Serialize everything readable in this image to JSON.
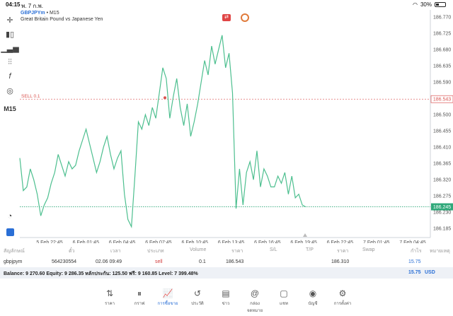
{
  "status_bar": {
    "time": "04:15",
    "date": "พ. 7 ก.พ.",
    "battery": "30%",
    "battery_level": 0.3
  },
  "toolbar": {
    "timeframe": "M15"
  },
  "symbol": {
    "title": "GBPJPYm",
    "separator": " • ",
    "timeframe": "M15",
    "description": "Great Britain Pound vs Japanese Yen"
  },
  "sell_line": {
    "label": "SELL 0.1",
    "price": "186.543"
  },
  "current_price": "186.245",
  "chart_data": {
    "type": "line",
    "x_labels": [
      "5 Feb 22:45",
      "6 Feb 01:45",
      "6 Feb 04:45",
      "6 Feb 07:45",
      "6 Feb 10:45",
      "6 Feb 13:45",
      "6 Feb 16:45",
      "6 Feb 19:45",
      "6 Feb 22:45",
      "7 Feb 01:45",
      "7 Feb 04:45"
    ],
    "y_ticks": [
      "186.770",
      "186.725",
      "186.680",
      "186.635",
      "186.590",
      "186.545",
      "186.500",
      "186.455",
      "186.410",
      "186.365",
      "186.320",
      "186.275",
      "186.230",
      "186.185"
    ],
    "ylim": [
      186.16,
      186.79
    ],
    "series": [
      {
        "values": [
          186.38,
          186.29,
          186.3,
          186.35,
          186.32,
          186.28,
          186.22,
          186.25,
          186.27,
          186.31,
          186.34,
          186.39,
          186.36,
          186.33,
          186.37,
          186.35,
          186.36,
          186.4,
          186.43,
          186.46,
          186.42,
          186.38,
          186.34,
          186.37,
          186.41,
          186.44,
          186.39,
          186.35,
          186.38,
          186.4,
          186.28,
          186.21,
          186.19,
          186.33,
          186.48,
          186.46,
          186.5,
          186.47,
          186.52,
          186.49,
          186.56,
          186.63,
          186.6,
          186.49,
          186.55,
          186.6,
          186.52,
          186.47,
          186.53,
          186.44,
          186.48,
          186.53,
          186.59,
          186.65,
          186.61,
          186.69,
          186.64,
          186.68,
          186.72,
          186.63,
          186.67,
          186.56,
          186.24,
          186.35,
          186.25,
          186.34,
          186.37,
          186.32,
          186.4,
          186.3,
          186.35,
          186.33,
          186.3,
          186.3,
          186.33,
          186.31,
          186.34,
          186.28,
          186.33,
          186.27,
          186.28,
          186.25,
          186.245
        ]
      }
    ],
    "grid": false
  },
  "table": {
    "headers": [
      "สัญลักษณ์",
      "ตั๋ว",
      "เวลา",
      "ประเภท",
      "Volume",
      "ราคา",
      "S/L",
      "T/P",
      "ราคา",
      "Swap",
      "กำไร",
      "หมายเหตุ"
    ],
    "row": {
      "symbol": "gbpjpym",
      "ticket": "564230554",
      "time": "02.06 09:49",
      "type": "sell",
      "volume": "0.1",
      "price": "186.543",
      "current": "186.310",
      "profit": "15.75"
    }
  },
  "balance": {
    "text": "Balance: 9 270.60 Equity: 9 286.35 หลักประกัน: 125.50 ฟรี: 9 160.85 Level: 7 399.48%",
    "total": "15.75",
    "currency": "USD"
  },
  "nav": [
    {
      "name": "nav-quotes",
      "icon": "⇅",
      "label": "ราคา"
    },
    {
      "name": "nav-chart",
      "icon": "⏸",
      "label": "กราฟ"
    },
    {
      "name": "nav-trade",
      "icon": "📈",
      "label": "การซื้อขาย",
      "active": true
    },
    {
      "name": "nav-history",
      "icon": "↺",
      "label": "ประวัติ"
    },
    {
      "name": "nav-news",
      "icon": "▤",
      "label": "ข่าว"
    },
    {
      "name": "nav-mailbox",
      "icon": "@",
      "label": "กล่องจดหมาย"
    },
    {
      "name": "nav-chat",
      "icon": "▢",
      "label": "แชท"
    },
    {
      "name": "nav-accounts",
      "icon": "◉",
      "label": "บัญชี"
    },
    {
      "name": "nav-settings",
      "icon": "⚙",
      "label": "การตั้งค่า"
    }
  ]
}
